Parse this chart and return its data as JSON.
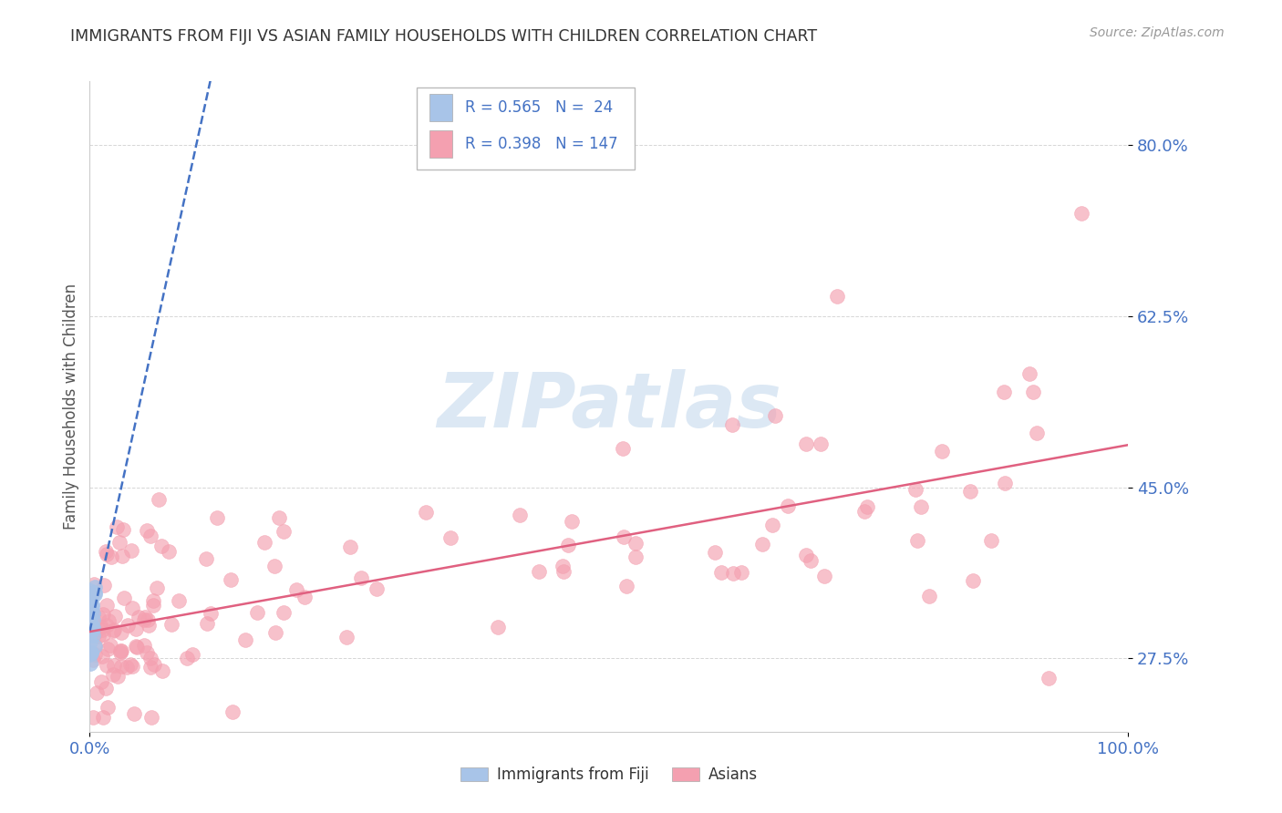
{
  "title": "IMMIGRANTS FROM FIJI VS ASIAN FAMILY HOUSEHOLDS WITH CHILDREN CORRELATION CHART",
  "source": "Source: ZipAtlas.com",
  "ylabel": "Family Households with Children",
  "xlim": [
    0.0,
    1.0
  ],
  "ylim": [
    0.2,
    0.865
  ],
  "yticks": [
    0.275,
    0.45,
    0.625,
    0.8
  ],
  "ytick_labels": [
    "27.5%",
    "45.0%",
    "62.5%",
    "80.0%"
  ],
  "fiji_R": 0.565,
  "fiji_N": 24,
  "asian_R": 0.398,
  "asian_N": 147,
  "fiji_color": "#a8c4e8",
  "asian_color": "#f4a0b0",
  "fiji_line_color": "#4472c4",
  "asian_line_color": "#e06080",
  "background_color": "#ffffff",
  "watermark_color": "#dce8f4",
  "legend_fiji_label": "Immigrants from Fiji",
  "legend_asian_label": "Asians",
  "title_color": "#333333",
  "axis_label_color": "#555555",
  "tick_color": "#4472c4",
  "grid_color": "#cccccc",
  "source_color": "#999999"
}
